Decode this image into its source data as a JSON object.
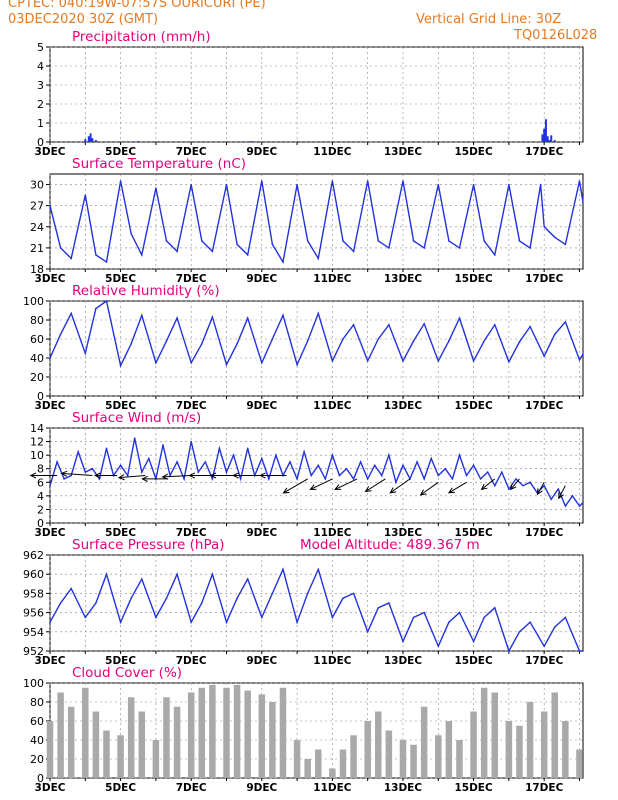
{
  "header": {
    "line1_left": "CPTEC:    040:19W-07:57S    OURICURI (PE)",
    "line2_left": "03DEC2020 30Z (GMT)",
    "line1_right": "Vertical Grid Line: 30Z",
    "line2_right": "TQ0126L028"
  },
  "colors": {
    "header": "#e8791f",
    "title": "#e6007e",
    "line": "#2233dd",
    "cloud": "#a9a9a9",
    "grid": "#888888"
  },
  "chart_data": [
    {
      "type": "bar",
      "title": "Precipitation (mm/h)",
      "ylim": [
        0,
        5
      ],
      "yticks": [
        0,
        1,
        2,
        3,
        4,
        5
      ],
      "xticks": [
        "3DEC",
        "5DEC",
        "7DEC",
        "9DEC",
        "11DEC",
        "13DEC",
        "15DEC",
        "17DEC"
      ],
      "xrange_days": [
        3.0,
        18.1
      ],
      "x": [
        4.0,
        4.1,
        4.15,
        4.2,
        4.3,
        5.5,
        8.7,
        16.95,
        17.0,
        17.05,
        17.1,
        17.15,
        17.2,
        17.3
      ],
      "values": [
        0.15,
        0.3,
        0.45,
        0.2,
        0.1,
        0.05,
        0.05,
        0.4,
        0.7,
        1.2,
        0.3,
        0.1,
        0.35,
        0.1
      ]
    },
    {
      "type": "line",
      "title": "Surface Temperature (nC)",
      "ylim": [
        18,
        31.5
      ],
      "yticks": [
        18,
        21,
        24,
        27,
        30
      ],
      "xticks": [
        "3DEC",
        "5DEC",
        "7DEC",
        "9DEC",
        "11DEC",
        "13DEC",
        "15DEC",
        "17DEC"
      ],
      "x": [
        3.0,
        3.3,
        3.6,
        4.0,
        4.3,
        4.6,
        5.0,
        5.3,
        5.6,
        6.0,
        6.3,
        6.6,
        7.0,
        7.3,
        7.6,
        8.0,
        8.3,
        8.6,
        9.0,
        9.3,
        9.6,
        10.0,
        10.3,
        10.6,
        11.0,
        11.3,
        11.6,
        12.0,
        12.3,
        12.6,
        13.0,
        13.3,
        13.6,
        14.0,
        14.3,
        14.6,
        15.0,
        15.3,
        15.6,
        16.0,
        16.3,
        16.6,
        16.9,
        17.0,
        17.3,
        17.6,
        18.0,
        18.1
      ],
      "y": [
        27,
        21,
        19.5,
        28.5,
        20,
        19,
        30.5,
        23,
        20,
        29.5,
        22,
        20.5,
        30,
        22,
        20.5,
        30,
        21.5,
        20,
        30.5,
        21.5,
        19,
        30,
        22,
        19.5,
        30.5,
        22,
        20.5,
        30.5,
        22,
        21,
        30.5,
        22,
        21,
        30,
        22,
        21,
        30,
        22,
        20,
        30,
        22,
        21,
        30,
        24,
        22.5,
        21.5,
        30.5,
        27.5
      ]
    },
    {
      "type": "line",
      "title": "Relative Humidity (%)",
      "ylim": [
        0,
        100
      ],
      "yticks": [
        0,
        20,
        40,
        60,
        80,
        100
      ],
      "xticks": [
        "3DEC",
        "5DEC",
        "7DEC",
        "9DEC",
        "11DEC",
        "13DEC",
        "15DEC",
        "17DEC"
      ],
      "x": [
        3.0,
        3.3,
        3.6,
        4.0,
        4.3,
        4.6,
        5.0,
        5.3,
        5.6,
        6.0,
        6.3,
        6.6,
        7.0,
        7.3,
        7.6,
        8.0,
        8.3,
        8.6,
        9.0,
        9.3,
        9.6,
        10.0,
        10.3,
        10.6,
        11.0,
        11.3,
        11.6,
        12.0,
        12.3,
        12.6,
        13.0,
        13.3,
        13.6,
        14.0,
        14.3,
        14.6,
        15.0,
        15.3,
        15.6,
        16.0,
        16.3,
        16.6,
        17.0,
        17.3,
        17.6,
        18.0,
        18.1
      ],
      "y": [
        40,
        65,
        87,
        45,
        92,
        100,
        32,
        55,
        85,
        35,
        58,
        82,
        35,
        55,
        83,
        33,
        55,
        82,
        35,
        60,
        85,
        33,
        58,
        87,
        37,
        60,
        75,
        37,
        60,
        75,
        37,
        58,
        76,
        37,
        58,
        82,
        37,
        58,
        75,
        36,
        57,
        73,
        42,
        65,
        78,
        38,
        44
      ]
    },
    {
      "type": "line",
      "title": "Surface Wind (m/s)",
      "ylim": [
        0,
        14
      ],
      "yticks": [
        0,
        2,
        4,
        6,
        8,
        10,
        12,
        14
      ],
      "xticks": [
        "3DEC",
        "5DEC",
        "7DEC",
        "9DEC",
        "11DEC",
        "13DEC",
        "15DEC",
        "17DEC"
      ],
      "x": [
        3.0,
        3.2,
        3.4,
        3.6,
        3.8,
        4.0,
        4.2,
        4.4,
        4.6,
        4.8,
        5.0,
        5.2,
        5.4,
        5.6,
        5.8,
        6.0,
        6.2,
        6.4,
        6.6,
        6.8,
        7.0,
        7.2,
        7.4,
        7.6,
        7.8,
        8.0,
        8.2,
        8.4,
        8.6,
        8.8,
        9.0,
        9.2,
        9.4,
        9.6,
        9.8,
        10.0,
        10.2,
        10.4,
        10.6,
        10.8,
        11.0,
        11.2,
        11.4,
        11.6,
        11.8,
        12.0,
        12.2,
        12.4,
        12.6,
        12.8,
        13.0,
        13.2,
        13.4,
        13.6,
        13.8,
        14.0,
        14.2,
        14.4,
        14.6,
        14.8,
        15.0,
        15.2,
        15.4,
        15.6,
        15.8,
        16.0,
        16.2,
        16.4,
        16.6,
        16.8,
        17.0,
        17.2,
        17.4,
        17.6,
        17.8,
        18.0,
        18.1
      ],
      "y": [
        5.5,
        9,
        6.5,
        7,
        10.5,
        7.5,
        8,
        6.5,
        11,
        7,
        8.5,
        7,
        12.5,
        7.5,
        9.5,
        6.5,
        11.5,
        7,
        9,
        6.5,
        12,
        7.5,
        9,
        6.5,
        11,
        7.5,
        10,
        6.5,
        11,
        7,
        9.5,
        6.5,
        10,
        7,
        9,
        6.5,
        10.5,
        7,
        8.5,
        6.5,
        10,
        7,
        8,
        6.5,
        9,
        6.5,
        8.5,
        7,
        10,
        6,
        8.5,
        6.5,
        9,
        6.5,
        9.5,
        7,
        8,
        6.5,
        10,
        7,
        8.5,
        6.5,
        7.5,
        5.5,
        7.5,
        5,
        6.5,
        5.5,
        6,
        4.5,
        5.5,
        3.5,
        5,
        2.5,
        4,
        2.5,
        3
      ],
      "arrows_x": [
        3.2,
        4.2,
        4.9,
        5.7,
        6.3,
        7.0,
        7.7,
        8.3,
        9.0,
        9.7,
        10.3,
        11.0,
        11.7,
        12.5,
        13.2,
        14.0,
        14.8,
        15.6,
        16.3,
        17.0,
        17.6
      ],
      "arrows_y": [
        7,
        7,
        7,
        7,
        6.5,
        7,
        7,
        7,
        7,
        7,
        6.5,
        6.5,
        6.5,
        6.5,
        6.5,
        6,
        6,
        6.5,
        6.5,
        6,
        5.5
      ],
      "arrows_dx": [
        -1.2,
        -1.4,
        -1.0,
        -1.2,
        -1.1,
        -1.3,
        -1.2,
        -1.2,
        -1.3,
        -1.2,
        -1.1,
        -1.0,
        -1.0,
        -0.9,
        -0.9,
        -0.8,
        -0.8,
        -0.6,
        -0.4,
        -0.3,
        -0.3
      ],
      "arrows_dy": [
        0.0,
        0.3,
        0.0,
        -0.3,
        0.0,
        -0.2,
        0.0,
        0.0,
        0.0,
        0.0,
        -2.0,
        -1.5,
        -1.5,
        -1.8,
        -2.0,
        -1.8,
        -1.5,
        -1.5,
        -1.5,
        -1.7,
        -1.8
      ]
    },
    {
      "type": "line",
      "title": "Surface Pressure (hPa)",
      "annotation": "Model Altitude: 489.367 m",
      "ylim": [
        952,
        962
      ],
      "yticks": [
        952,
        954,
        956,
        958,
        960,
        962
      ],
      "xticks": [
        "3DEC",
        "5DEC",
        "7DEC",
        "9DEC",
        "11DEC",
        "13DEC",
        "15DEC",
        "17DEC"
      ],
      "x": [
        3.0,
        3.3,
        3.6,
        4.0,
        4.3,
        4.6,
        5.0,
        5.3,
        5.6,
        6.0,
        6.3,
        6.6,
        7.0,
        7.3,
        7.6,
        8.0,
        8.3,
        8.6,
        9.0,
        9.3,
        9.6,
        10.0,
        10.3,
        10.6,
        11.0,
        11.3,
        11.6,
        12.0,
        12.3,
        12.6,
        13.0,
        13.3,
        13.6,
        14.0,
        14.3,
        14.6,
        15.0,
        15.3,
        15.6,
        16.0,
        16.3,
        16.6,
        17.0,
        17.3,
        17.6,
        18.0,
        18.1
      ],
      "y": [
        955,
        957,
        958.5,
        955.5,
        957,
        960,
        955,
        957.5,
        959.5,
        955.5,
        957.5,
        960,
        955,
        957,
        960,
        955,
        957.5,
        959.5,
        955.5,
        958,
        960.5,
        955,
        958,
        960.5,
        955.5,
        957.5,
        958,
        954,
        956.5,
        957,
        953,
        955.5,
        956,
        952.5,
        955,
        956,
        953,
        955.5,
        956.5,
        952,
        954,
        955,
        952.5,
        954.5,
        955.5,
        952,
        952
      ]
    },
    {
      "type": "bar",
      "title": "Cloud Cover (%)",
      "ylim": [
        0,
        100
      ],
      "yticks": [
        0,
        20,
        40,
        60,
        80,
        100
      ],
      "xticks": [
        "3DEC",
        "5DEC",
        "7DEC",
        "9DEC",
        "11DEC",
        "13DEC",
        "15DEC",
        "17DEC"
      ],
      "x": [
        3.0,
        3.3,
        3.6,
        4.0,
        4.3,
        4.6,
        5.0,
        5.3,
        5.6,
        6.0,
        6.3,
        6.6,
        7.0,
        7.3,
        7.6,
        8.0,
        8.3,
        8.6,
        9.0,
        9.3,
        9.6,
        10.0,
        10.3,
        10.6,
        11.0,
        11.3,
        11.6,
        12.0,
        12.3,
        12.6,
        13.0,
        13.3,
        13.6,
        14.0,
        14.3,
        14.6,
        15.0,
        15.3,
        15.6,
        16.0,
        16.3,
        16.6,
        17.0,
        17.3,
        17.6,
        18.0
      ],
      "values": [
        60,
        90,
        75,
        95,
        70,
        50,
        45,
        85,
        70,
        40,
        85,
        75,
        90,
        95,
        98,
        95,
        98,
        92,
        88,
        80,
        95,
        40,
        20,
        30,
        10,
        30,
        45,
        60,
        70,
        50,
        40,
        35,
        75,
        45,
        60,
        40,
        70,
        95,
        90,
        60,
        55,
        80,
        70,
        90,
        60,
        30
      ]
    }
  ]
}
